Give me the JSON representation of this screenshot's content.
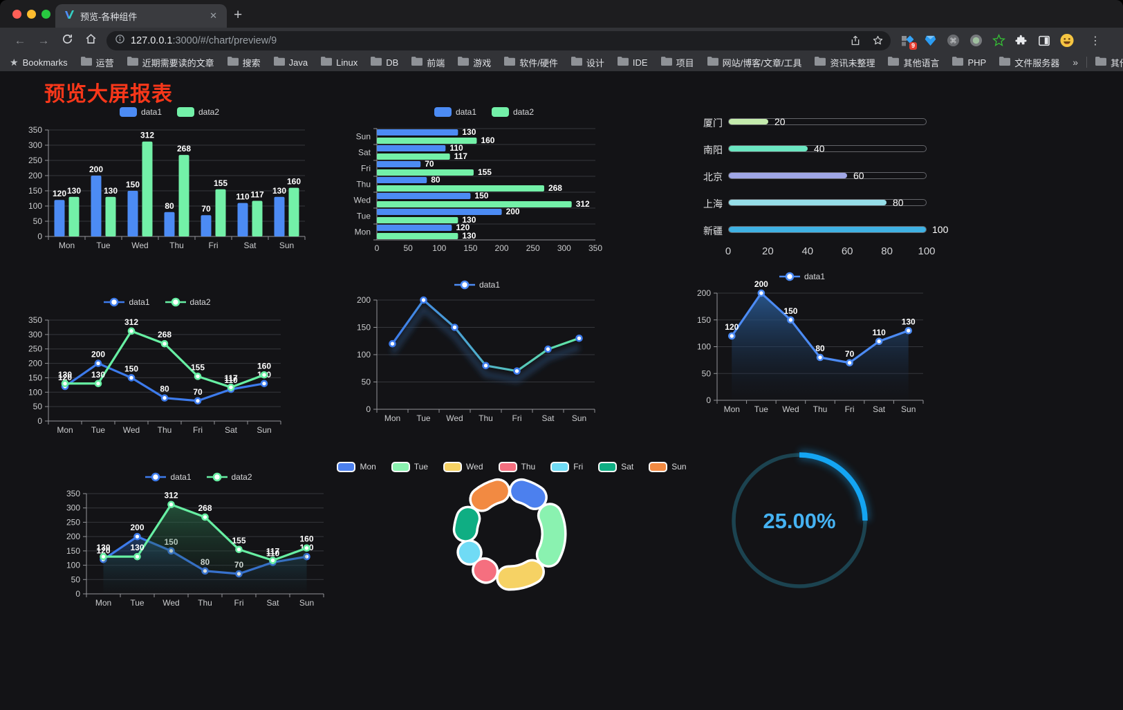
{
  "browser": {
    "tab_title": "预览-各种组件",
    "url_host": "127.0.0.1",
    "url_rest": ":3000/#/chart/preview/9",
    "bookmarks_label": "Bookmarks",
    "bookmarks": [
      "运营",
      "近期需要读的文章",
      "搜索",
      "Java",
      "Linux",
      "DB",
      "前端",
      "游戏",
      "软件/硬件",
      "设计",
      "IDE",
      "项目",
      "网站/博客/文章/工具",
      "资讯未整理",
      "其他语言",
      "PHP",
      "文件服务器"
    ],
    "other_bookmarks": "其他书签",
    "extension_badge": "9"
  },
  "icons": {
    "close": "✕",
    "new_tab": "+",
    "back": "←",
    "forward": "→",
    "overflow": "»",
    "menu": "⋮",
    "bookmarks_star": "★"
  },
  "page": {
    "title": "预览大屏报表",
    "title_color": "#f8371a",
    "background": "#131316"
  },
  "chart_data": [
    {
      "id": "c1",
      "type": "bar",
      "orientation": "vertical",
      "legend_position": "top",
      "grid": true,
      "categories": [
        "Mon",
        "Tue",
        "Wed",
        "Thu",
        "Fri",
        "Sat",
        "Sun"
      ],
      "series": [
        {
          "name": "data1",
          "color": "#4C8BF4",
          "values": [
            120,
            200,
            150,
            80,
            70,
            110,
            130
          ]
        },
        {
          "name": "data2",
          "color": "#73F0A8",
          "values": [
            130,
            130,
            312,
            268,
            155,
            117,
            160
          ]
        }
      ],
      "ylim": [
        0,
        350
      ],
      "ytick_step": 50
    },
    {
      "id": "c2",
      "type": "bar",
      "orientation": "horizontal",
      "legend_position": "top",
      "grid": true,
      "categories_top_to_bottom": [
        "Sun",
        "Sat",
        "Fri",
        "Thu",
        "Wed",
        "Tue",
        "Mon"
      ],
      "series": [
        {
          "name": "data1",
          "color": "#4C8BF4",
          "values": [
            130,
            110,
            70,
            80,
            150,
            200,
            120
          ]
        },
        {
          "name": "data2",
          "color": "#73F0A8",
          "values": [
            160,
            117,
            155,
            268,
            312,
            130,
            130
          ]
        }
      ],
      "xlim": [
        0,
        350
      ],
      "xtick_step": 50
    },
    {
      "id": "c3",
      "type": "bar",
      "variant": "progress",
      "max": 100,
      "items": [
        {
          "label": "厦门",
          "value": 20,
          "color": "#C4EBAD"
        },
        {
          "label": "南阳",
          "value": 40,
          "color": "#6BE6C1"
        },
        {
          "label": "北京",
          "value": 60,
          "color": "#A0A7E6"
        },
        {
          "label": "上海",
          "value": 80,
          "color": "#96DEE8"
        },
        {
          "label": "新疆",
          "value": 100,
          "color": "#3FB1E3"
        }
      ],
      "axis_ticks": [
        0,
        20,
        40,
        60,
        80,
        100
      ]
    },
    {
      "id": "c4",
      "type": "line",
      "legend_position": "top",
      "show_labels": true,
      "grid": true,
      "categories": [
        "Mon",
        "Tue",
        "Wed",
        "Thu",
        "Fri",
        "Sat",
        "Sun"
      ],
      "series": [
        {
          "name": "data1",
          "color": "#3D7BEC",
          "values": [
            120,
            200,
            150,
            80,
            70,
            110,
            130
          ]
        },
        {
          "name": "data2",
          "color": "#67EFA3",
          "values": [
            130,
            130,
            312,
            268,
            155,
            117,
            160
          ]
        }
      ],
      "ylim": [
        0,
        350
      ],
      "ytick_step": 50
    },
    {
      "id": "c5",
      "type": "line",
      "legend_position": "top",
      "show_labels": false,
      "shadow": true,
      "grid": true,
      "categories": [
        "Mon",
        "Tue",
        "Wed",
        "Thu",
        "Fri",
        "Sat",
        "Sun"
      ],
      "series": [
        {
          "name": "data1",
          "gradient": [
            "#3D7BEC",
            "#62E8A4"
          ],
          "color": "#4C8BF4",
          "values": [
            120,
            200,
            150,
            80,
            70,
            110,
            130
          ]
        }
      ],
      "ylim": [
        0,
        200
      ],
      "ytick_step": 50
    },
    {
      "id": "c6",
      "type": "area",
      "legend_position": "top",
      "show_labels": true,
      "grid": true,
      "categories": [
        "Mon",
        "Tue",
        "Wed",
        "Thu",
        "Fri",
        "Sat",
        "Sun"
      ],
      "series": [
        {
          "name": "data1",
          "color": "#4C8BF4",
          "area_from": "rgba(42,92,150,0.9)",
          "area_to": "rgba(20,35,55,0.03)",
          "values": [
            120,
            200,
            150,
            80,
            70,
            110,
            130
          ]
        }
      ],
      "ylim": [
        0,
        200
      ],
      "ytick_step": 50
    },
    {
      "id": "c7",
      "type": "area",
      "legend_position": "top",
      "show_labels": true,
      "grid": true,
      "categories": [
        "Mon",
        "Tue",
        "Wed",
        "Thu",
        "Fri",
        "Sat",
        "Sun"
      ],
      "series": [
        {
          "name": "data1",
          "color": "#3D7BEC",
          "area_from": "rgba(40,90,160,0.55)",
          "area_to": "rgba(20,35,55,0.03)",
          "values": [
            120,
            200,
            150,
            80,
            70,
            110,
            130
          ]
        },
        {
          "name": "data2",
          "color": "#67EFA3",
          "area_from": "rgba(46,120,80,0.60)",
          "area_to": "rgba(20,45,35,0.03)",
          "values": [
            130,
            130,
            312,
            268,
            155,
            117,
            160
          ]
        }
      ],
      "ylim": [
        0,
        350
      ],
      "ytick_step": 50
    },
    {
      "id": "c8",
      "type": "pie",
      "variant": "donut",
      "legend_position": "top",
      "border_color": "#ffffff",
      "items": [
        {
          "label": "Mon",
          "value": 120,
          "color": "#4C80EE"
        },
        {
          "label": "Tue",
          "value": 200,
          "color": "#8AF2B0"
        },
        {
          "label": "Wed",
          "value": 150,
          "color": "#F6D264"
        },
        {
          "label": "Thu",
          "value": 80,
          "color": "#F56F7F"
        },
        {
          "label": "Fri",
          "value": 70,
          "color": "#70DBF5"
        },
        {
          "label": "Sat",
          "value": 110,
          "color": "#0FAE83"
        },
        {
          "label": "Sun",
          "value": 130,
          "color": "#F28A42"
        }
      ]
    },
    {
      "id": "c9",
      "type": "gauge",
      "value": 25,
      "label": "25.00%",
      "track_color": "#1C4350",
      "progress_color": "#14A5F3",
      "text_color": "#45B2F2"
    }
  ]
}
